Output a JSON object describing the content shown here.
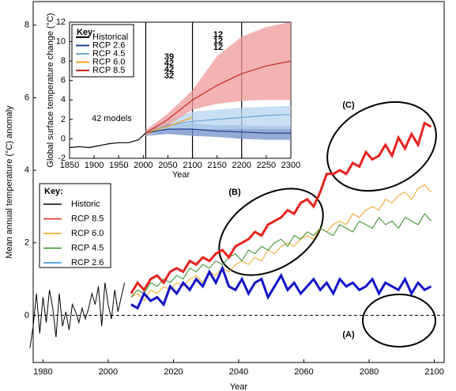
{
  "chart_data": [
    {
      "type": "line",
      "x_label": "Year",
      "y_label": "Mean annual temperature (°C) anomaly",
      "xlim": [
        1977,
        2103
      ],
      "ylim": [
        -1.3,
        8.65
      ],
      "xticks": [
        1980,
        2000,
        2020,
        2040,
        2060,
        2080,
        2100
      ],
      "yticks": [
        0,
        2,
        4,
        6,
        8
      ],
      "legend_title": "Key:",
      "annotations": [
        "(A)",
        "(B)",
        "(C)"
      ],
      "x": [
        2007,
        2009,
        2011,
        2013,
        2015,
        2017,
        2019,
        2021,
        2023,
        2025,
        2027,
        2029,
        2031,
        2033,
        2035,
        2037,
        2039,
        2041,
        2043,
        2045,
        2047,
        2049,
        2051,
        2053,
        2055,
        2057,
        2059,
        2061,
        2063,
        2065,
        2067,
        2069,
        2071,
        2073,
        2075,
        2077,
        2079,
        2081,
        2083,
        2085,
        2087,
        2089,
        2091,
        2093,
        2095,
        2097,
        2099
      ],
      "series": [
        {
          "name": "Historic",
          "color": "#000000",
          "width": 1,
          "x": [
            1976,
            1977,
            1978,
            1979,
            1980,
            1981,
            1982,
            1983,
            1984,
            1985,
            1986,
            1987,
            1988,
            1989,
            1990,
            1991,
            1992,
            1993,
            1994,
            1995,
            1996,
            1997,
            1998,
            1999,
            2000,
            2001,
            2002,
            2003,
            2004,
            2005
          ],
          "values": [
            -0.9,
            -0.3,
            0.6,
            -0.5,
            0.5,
            -0.2,
            0.7,
            0.2,
            -0.6,
            0.6,
            -0.3,
            0.1,
            -0.4,
            0.3,
            0.1,
            -0.2,
            0.2,
            -0.1,
            0.2,
            0.6,
            0.3,
            0.8,
            -0.3,
            0.9,
            0.3,
            -0.1,
            0.7,
            0.1,
            0.5,
            0.9
          ]
        },
        {
          "name": "RCP 8.5",
          "color": "#e8231f",
          "width": 3,
          "values": [
            0.6,
            0.9,
            0.7,
            1.0,
            1.1,
            0.9,
            1.2,
            1.3,
            1.2,
            1.5,
            1.4,
            1.6,
            1.5,
            1.7,
            1.8,
            1.6,
            1.9,
            2.0,
            2.1,
            2.3,
            2.2,
            2.5,
            2.6,
            2.7,
            2.9,
            2.8,
            3.1,
            3.2,
            3.0,
            3.4,
            3.9,
            3.9,
            4.0,
            3.9,
            4.2,
            4.1,
            4.5,
            4.3,
            4.4,
            4.7,
            4.4,
            4.9,
            4.6,
            5.0,
            4.7,
            5.3,
            5.2
          ]
        },
        {
          "name": "RCP 6.0",
          "color": "#f0a21e",
          "width": 1,
          "values": [
            0.5,
            0.6,
            0.4,
            0.7,
            0.6,
            0.8,
            0.7,
            0.9,
            0.8,
            1.0,
            1.1,
            0.9,
            1.2,
            1.1,
            1.3,
            1.2,
            1.4,
            1.5,
            1.4,
            1.6,
            1.5,
            1.8,
            1.7,
            1.9,
            2.0,
            1.9,
            2.1,
            2.2,
            2.1,
            2.4,
            2.3,
            2.5,
            2.6,
            2.5,
            2.8,
            2.7,
            2.9,
            3.0,
            2.9,
            3.2,
            3.1,
            3.3,
            3.4,
            3.2,
            3.5,
            3.6,
            3.4
          ]
        },
        {
          "name": "RCP 4.5",
          "color": "#2f8a1e",
          "width": 1,
          "values": [
            0.5,
            0.7,
            0.6,
            0.9,
            0.8,
            1.0,
            0.9,
            1.1,
            1.0,
            1.3,
            1.2,
            1.4,
            1.3,
            1.5,
            1.4,
            1.6,
            1.7,
            1.5,
            1.8,
            1.7,
            1.9,
            1.8,
            2.0,
            2.1,
            1.9,
            2.2,
            2.1,
            2.3,
            2.2,
            2.4,
            2.3,
            2.2,
            2.5,
            2.4,
            2.3,
            2.6,
            2.5,
            2.4,
            2.7,
            2.5,
            2.6,
            2.4,
            2.7,
            2.6,
            2.5,
            2.8,
            2.6
          ]
        },
        {
          "name": "RCP 2.6",
          "color": "#2a8fd8",
          "legend_color": "#2a8fd8",
          "line_color": "#1414c8",
          "width": 3,
          "values": [
            0.3,
            0.2,
            0.6,
            0.4,
            0.5,
            0.3,
            0.8,
            0.6,
            0.9,
            0.7,
            1.0,
            0.8,
            1.2,
            0.9,
            1.3,
            0.8,
            0.7,
            1.0,
            0.6,
            0.9,
            1.0,
            0.5,
            0.8,
            1.1,
            0.7,
            0.9,
            0.6,
            0.8,
            1.0,
            0.7,
            0.9,
            0.6,
            1.0,
            0.8,
            0.9,
            0.7,
            0.8,
            1.0,
            0.6,
            0.9,
            0.8,
            0.7,
            1.0,
            0.6,
            0.9,
            0.7,
            0.8
          ]
        }
      ]
    },
    {
      "type": "line",
      "x_label": "Year",
      "y_label": "Global surface temperature change (°C)",
      "xlim": [
        1850,
        2300
      ],
      "ylim": [
        -2,
        12
      ],
      "xticks": [
        1850,
        1900,
        1950,
        2000,
        2050,
        2100,
        2150,
        2200,
        2250,
        2300
      ],
      "yticks": [
        -2,
        0,
        2,
        4,
        6,
        8,
        10,
        12
      ],
      "vlines": [
        2005,
        2100,
        2200
      ],
      "legend_title": "Key:",
      "note": "42 models",
      "model_counts": [
        {
          "text": "39",
          "color": "#d9342b"
        },
        {
          "text": "42",
          "color": "#f5c27a"
        },
        {
          "text": "42",
          "color": "#a9cdf0"
        },
        {
          "text": "32",
          "color": "#2b4f9a"
        },
        {
          "text": "12",
          "color": "#d9342b"
        },
        {
          "text": "12",
          "color": "#a9cdf0"
        },
        {
          "text": "12",
          "color": "#2b4f9a"
        }
      ],
      "series": [
        {
          "name": "Historical",
          "color": "#000000",
          "x": [
            1850,
            1870,
            1890,
            1910,
            1930,
            1950,
            1970,
            1990,
            2005
          ],
          "values": [
            -0.9,
            -0.8,
            -0.9,
            -0.7,
            -0.5,
            -0.4,
            -0.4,
            -0.1,
            0.6
          ]
        },
        {
          "name": "RCP 2.6",
          "color": "#1f3f8f",
          "band_color": "#6f8fc8",
          "x": [
            2005,
            2050,
            2100,
            2150,
            2200,
            2250,
            2300
          ],
          "values": [
            0.6,
            1.0,
            1.0,
            0.8,
            0.7,
            0.6,
            0.6
          ],
          "lower": [
            0.3,
            0.5,
            0.3,
            0.2,
            0.0,
            -0.1,
            -0.1
          ],
          "upper": [
            0.9,
            1.5,
            1.6,
            1.4,
            1.4,
            1.3,
            1.3
          ]
        },
        {
          "name": "RCP 4.5",
          "color": "#6fa8dc",
          "band_color": "#b6d4f0",
          "x": [
            2005,
            2050,
            2100,
            2150,
            2200,
            2250,
            2300
          ],
          "values": [
            0.6,
            1.4,
            1.8,
            2.0,
            2.2,
            2.4,
            2.5
          ],
          "lower": [
            0.3,
            1.0,
            1.0,
            1.0,
            1.0,
            1.0,
            1.0
          ],
          "upper": [
            0.9,
            1.9,
            2.8,
            3.0,
            3.2,
            3.3,
            3.4
          ]
        },
        {
          "name": "RCP 6.0",
          "color": "#f0a21e",
          "x": [
            2005,
            2050,
            2100
          ],
          "values": [
            0.6,
            1.3,
            2.2
          ]
        },
        {
          "name": "RCP 8.5",
          "color": "#c8281e",
          "band_color": "#ef9a9a",
          "x": [
            2005,
            2050,
            2100,
            2150,
            2200,
            2250,
            2300
          ],
          "values": [
            0.6,
            2.0,
            4.0,
            5.5,
            6.7,
            7.5,
            8.0
          ],
          "lower": [
            0.3,
            1.4,
            3.0,
            3.6,
            3.9,
            4.0,
            4.0
          ],
          "upper": [
            0.9,
            2.6,
            5.0,
            8.5,
            10.5,
            11.5,
            12
          ]
        }
      ]
    }
  ]
}
